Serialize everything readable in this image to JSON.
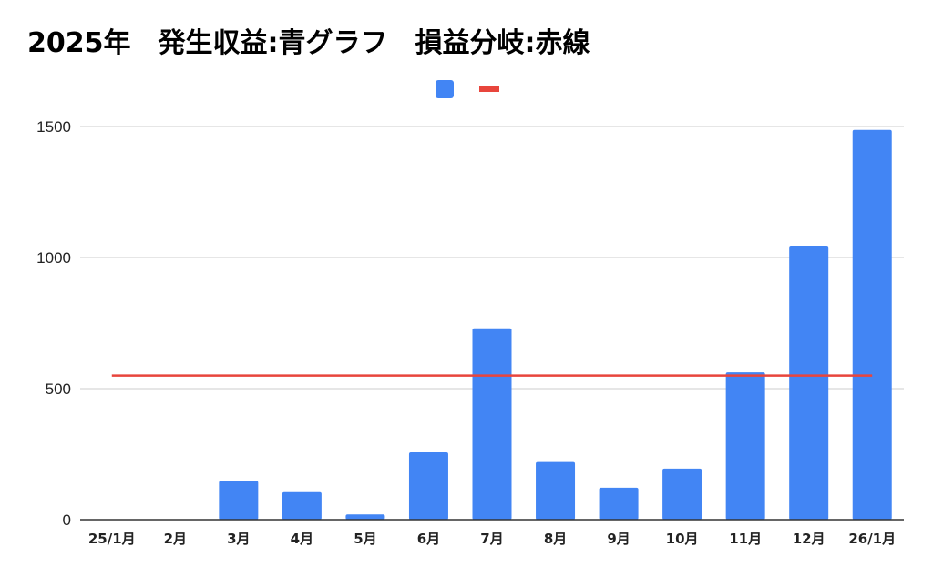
{
  "title": "2025年　発生収益:青グラフ　損益分岐:赤線",
  "chart_data": {
    "type": "bar",
    "title": "2025年　発生収益:青グラフ　損益分岐:赤線",
    "categories": [
      "25/1月",
      "2月",
      "3月",
      "4月",
      "5月",
      "6月",
      "7月",
      "8月",
      "9月",
      "10月",
      "11月",
      "12月",
      "26/1月"
    ],
    "series": [
      {
        "type": "bar",
        "color": "#4285f4",
        "values": [
          0,
          0,
          148,
          105,
          20,
          257,
          730,
          220,
          122,
          195,
          562,
          1045,
          1487
        ]
      },
      {
        "type": "line",
        "color": "#e8453c",
        "values": [
          550,
          550,
          550,
          550,
          550,
          550,
          550,
          550,
          550,
          550,
          550,
          550,
          550
        ]
      }
    ],
    "xlabel": "",
    "ylabel": "",
    "ylim": [
      0,
      1500
    ],
    "yticks": [
      0,
      500,
      1000,
      1500
    ],
    "grid": true,
    "legend": "top-center"
  }
}
